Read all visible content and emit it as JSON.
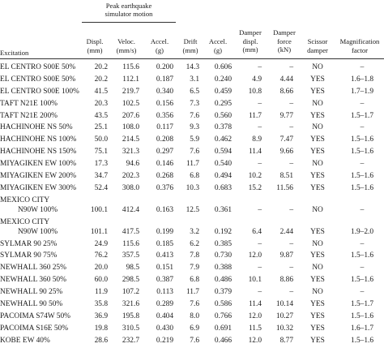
{
  "header": {
    "group_title_line1": "Peak earthquake",
    "group_title_line2": "simulator motion",
    "columns": {
      "excitation": "Excitation",
      "displ": [
        "Displ.",
        "(mm)"
      ],
      "veloc": [
        "Veloc.",
        "(mm/s)"
      ],
      "accel": [
        "Accel.",
        "(g)"
      ],
      "drift": [
        "Drift",
        "(mm)"
      ],
      "accel2": [
        "Accel.",
        "(g)"
      ],
      "damper_displ": [
        "Damper",
        "displ.",
        "(mm)"
      ],
      "damper_force": [
        "Damper",
        "force",
        "(kN)"
      ],
      "scissor": [
        "Scissor",
        "damper"
      ],
      "magnification": [
        "Magnification",
        "factor"
      ]
    }
  },
  "rows": [
    {
      "exc": [
        "EL CENTRO S00E 50%"
      ],
      "displ": "20.2",
      "veloc": "115.6",
      "accel": "0.200",
      "drift": "14.3",
      "accel2": "0.606",
      "ddispl": "–",
      "dforce": "–",
      "scissor": "NO",
      "magn": "–"
    },
    {
      "exc": [
        "EL CENTRO S00E 50%"
      ],
      "displ": "20.2",
      "veloc": "112.1",
      "accel": "0.187",
      "drift": "3.1",
      "accel2": "0.240",
      "ddispl": "4.9",
      "dforce": "4.44",
      "scissor": "YES",
      "magn": "1.6–1.8"
    },
    {
      "exc": [
        "EL CENTRO S00E 100%"
      ],
      "displ": "41.5",
      "veloc": "219.7",
      "accel": "0.340",
      "drift": "6.5",
      "accel2": "0.459",
      "ddispl": "10.8",
      "dforce": "8.66",
      "scissor": "YES",
      "magn": "1.7–1.9"
    },
    {
      "exc": [
        "TAFT N21E 100%"
      ],
      "displ": "20.3",
      "veloc": "102.5",
      "accel": "0.156",
      "drift": "7.3",
      "accel2": "0.295",
      "ddispl": "–",
      "dforce": "–",
      "scissor": "NO",
      "magn": "–"
    },
    {
      "exc": [
        "TAFT N21E 200%"
      ],
      "displ": "43.5",
      "veloc": "207.6",
      "accel": "0.356",
      "drift": "7.6",
      "accel2": "0.560",
      "ddispl": "11.7",
      "dforce": "9.77",
      "scissor": "YES",
      "magn": "1.5–1.7"
    },
    {
      "exc": [
        "HACHINOHE NS 50%"
      ],
      "displ": "25.1",
      "veloc": "108.0",
      "accel": "0.117",
      "drift": "9.3",
      "accel2": "0.378",
      "ddispl": "–",
      "dforce": "–",
      "scissor": "NO",
      "magn": "–"
    },
    {
      "exc": [
        "HACHINOHE NS 100%"
      ],
      "displ": "50.0",
      "veloc": "214.5",
      "accel": "0.208",
      "drift": "5.9",
      "accel2": "0.462",
      "ddispl": "8.9",
      "dforce": "7.47",
      "scissor": "YES",
      "magn": "1.5–1.6"
    },
    {
      "exc": [
        "HACHINOHE NS 150%"
      ],
      "displ": "75.1",
      "veloc": "321.3",
      "accel": "0.297",
      "drift": "7.6",
      "accel2": "0.594",
      "ddispl": "11.4",
      "dforce": "9.66",
      "scissor": "YES",
      "magn": "1.5–1.6"
    },
    {
      "exc": [
        "MIYAGIKEN EW 100%"
      ],
      "displ": "17.3",
      "veloc": "94.6",
      "accel": "0.146",
      "drift": "11.7",
      "accel2": "0.540",
      "ddispl": "–",
      "dforce": "–",
      "scissor": "NO",
      "magn": "–"
    },
    {
      "exc": [
        "MIYAGIKEN EW 200%"
      ],
      "displ": "34.7",
      "veloc": "202.3",
      "accel": "0.268",
      "drift": "6.8",
      "accel2": "0.494",
      "ddispl": "10.2",
      "dforce": "8.51",
      "scissor": "YES",
      "magn": "1.5–1.6"
    },
    {
      "exc": [
        "MIYAGIKEN EW 300%"
      ],
      "displ": "52.4",
      "veloc": "308.0",
      "accel": "0.376",
      "drift": "10.3",
      "accel2": "0.683",
      "ddispl": "15.2",
      "dforce": "11.56",
      "scissor": "YES",
      "magn": "1.5–1.6"
    },
    {
      "exc": [
        "MEXICO CITY",
        "N90W 100%"
      ],
      "displ": "100.1",
      "veloc": "412.4",
      "accel": "0.163",
      "drift": "12.5",
      "accel2": "0.361",
      "ddispl": "–",
      "dforce": "–",
      "scissor": "NO",
      "magn": "–"
    },
    {
      "exc": [
        "MEXICO CITY",
        "N90W 100%"
      ],
      "displ": "101.1",
      "veloc": "417.5",
      "accel": "0.199",
      "drift": "3.2",
      "accel2": "0.192",
      "ddispl": "6.4",
      "dforce": "2.44",
      "scissor": "YES",
      "magn": "1.9–2.0"
    },
    {
      "exc": [
        "SYLMAR 90 25%"
      ],
      "displ": "24.9",
      "veloc": "115.6",
      "accel": "0.185",
      "drift": "6.2",
      "accel2": "0.385",
      "ddispl": "–",
      "dforce": "–",
      "scissor": "NO",
      "magn": "–"
    },
    {
      "exc": [
        "SYLMAR 90 75%"
      ],
      "displ": "76.2",
      "veloc": "357.5",
      "accel": "0.413",
      "drift": "7.8",
      "accel2": "0.730",
      "ddispl": "12.0",
      "dforce": "9.87",
      "scissor": "YES",
      "magn": "1.5–1.6"
    },
    {
      "exc": [
        "NEWHALL 360 25%"
      ],
      "displ": "20.0",
      "veloc": "98.5",
      "accel": "0.151",
      "drift": "7.9",
      "accel2": "0.388",
      "ddispl": "–",
      "dforce": "–",
      "scissor": "NO",
      "magn": "–"
    },
    {
      "exc": [
        "NEWHALL 360 50%"
      ],
      "displ": "60.0",
      "veloc": "298.5",
      "accel": "0.387",
      "drift": "6.8",
      "accel2": "0.486",
      "ddispl": "10.1",
      "dforce": "8.86",
      "scissor": "YES",
      "magn": "1.5–1.6"
    },
    {
      "exc": [
        "NEWHALL 90 25%"
      ],
      "displ": "11.9",
      "veloc": "107.2",
      "accel": "0.113",
      "drift": "11.7",
      "accel2": "0.379",
      "ddispl": "–",
      "dforce": "–",
      "scissor": "NO",
      "magn": "–"
    },
    {
      "exc": [
        "NEWHALL 90 50%"
      ],
      "displ": "35.8",
      "veloc": "321.6",
      "accel": "0.289",
      "drift": "7.6",
      "accel2": "0.586",
      "ddispl": "11.4",
      "dforce": "10.14",
      "scissor": "YES",
      "magn": "1.5–1.7"
    },
    {
      "exc": [
        "PACOIMA S74W 50%"
      ],
      "displ": "36.9",
      "veloc": "195.8",
      "accel": "0.404",
      "drift": "8.0",
      "accel2": "0.766",
      "ddispl": "12.0",
      "dforce": "10.27",
      "scissor": "YES",
      "magn": "1.5–1.6"
    },
    {
      "exc": [
        "PACOIMA S16E 50%"
      ],
      "displ": "19.8",
      "veloc": "310.5",
      "accel": "0.430",
      "drift": "6.9",
      "accel2": "0.691",
      "ddispl": "11.5",
      "dforce": "10.32",
      "scissor": "YES",
      "magn": "1.6–1.7"
    },
    {
      "exc": [
        "KOBE EW 40%"
      ],
      "displ": "28.6",
      "veloc": "232.7",
      "accel": "0.219",
      "drift": "7.6",
      "accel2": "0.466",
      "ddispl": "12.0",
      "dforce": "8.77",
      "scissor": "YES",
      "magn": "1.5–1.6"
    }
  ]
}
